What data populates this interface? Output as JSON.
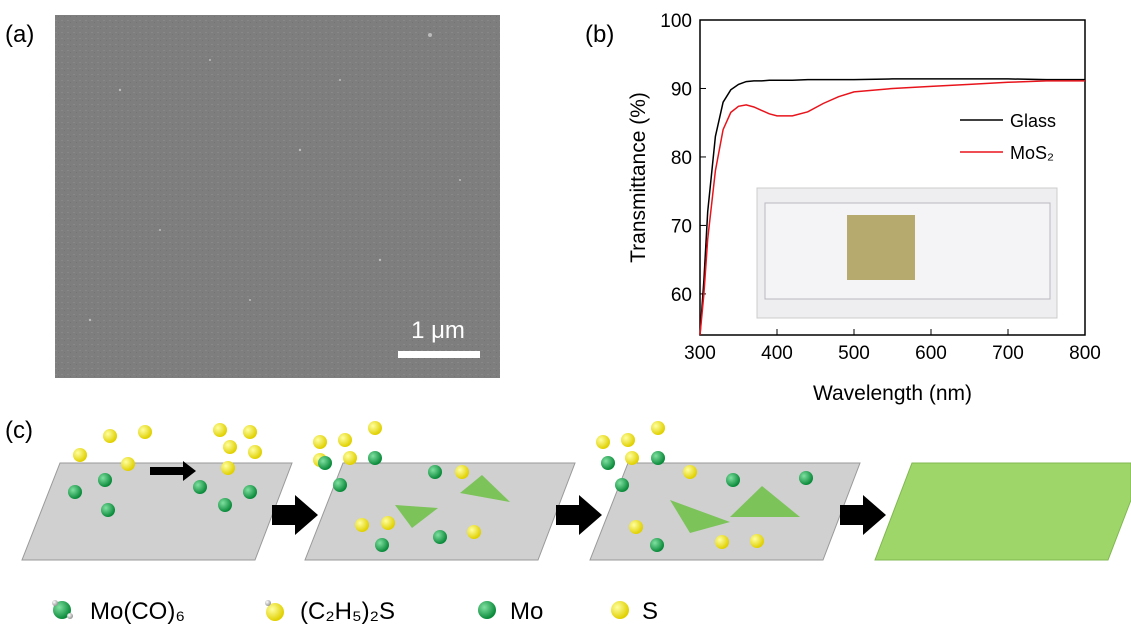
{
  "panel_labels": [
    "(a)",
    "(b)",
    "(c)"
  ],
  "sem": {
    "scale_label": "1 μm"
  },
  "chart_data": {
    "type": "line",
    "xlabel": "Wavelength (nm)",
    "ylabel": "Transmittance (%)",
    "x": [
      300,
      305,
      310,
      320,
      330,
      340,
      350,
      360,
      370,
      380,
      390,
      400,
      420,
      440,
      460,
      480,
      500,
      550,
      600,
      650,
      700,
      750,
      800
    ],
    "series": [
      {
        "name": "Glass",
        "color": "#000000",
        "values": [
          54,
          62,
          72,
          83,
          88,
          89.8,
          90.6,
          91,
          91.1,
          91.1,
          91.2,
          91.2,
          91.2,
          91.3,
          91.3,
          91.3,
          91.3,
          91.4,
          91.4,
          91.4,
          91.4,
          91.3,
          91.3
        ]
      },
      {
        "name": "MoS₂",
        "color": "#e8141c",
        "values": [
          54,
          60,
          68,
          78,
          84,
          86.5,
          87.4,
          87.6,
          87.3,
          86.8,
          86.3,
          86,
          86,
          86.6,
          87.8,
          88.8,
          89.5,
          90,
          90.3,
          90.6,
          90.9,
          91.1,
          91.1
        ]
      }
    ],
    "xlim": [
      300,
      800
    ],
    "ylim": [
      54,
      100
    ],
    "xticks": [
      300,
      400,
      500,
      600,
      700,
      800
    ],
    "yticks": [
      60,
      70,
      80,
      90,
      100
    ]
  },
  "legend": [
    "Mo(CO)₆",
    "(C₂H₅)₂S",
    "Mo",
    "S"
  ]
}
